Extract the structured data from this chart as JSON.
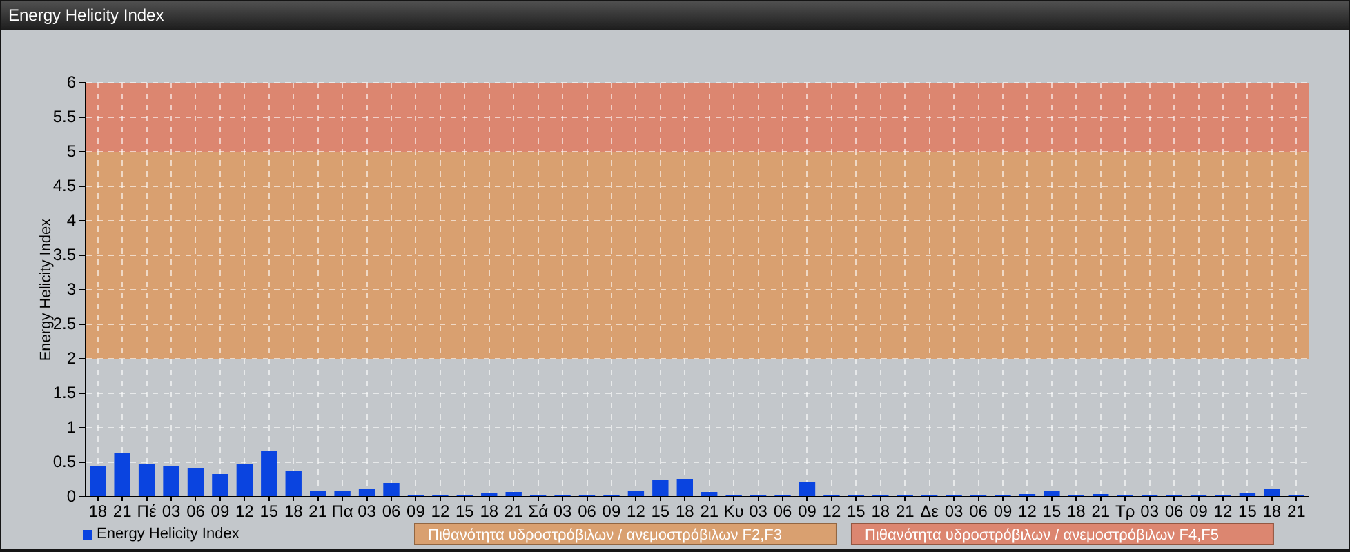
{
  "chart_data": {
    "type": "bar",
    "title": "Energy Helicity Index",
    "ylabel": "Energy Helicity Index",
    "categories": [
      "18",
      "21",
      "Πέ",
      "03",
      "06",
      "09",
      "12",
      "15",
      "18",
      "21",
      "Πα",
      "03",
      "06",
      "09",
      "12",
      "15",
      "18",
      "21",
      "Σά",
      "03",
      "06",
      "09",
      "12",
      "15",
      "18",
      "21",
      "Κυ",
      "03",
      "06",
      "09",
      "12",
      "15",
      "18",
      "21",
      "Δε",
      "03",
      "06",
      "09",
      "12",
      "15",
      "18",
      "21",
      "Τρ",
      "03",
      "06",
      "09",
      "12",
      "15",
      "18",
      "21"
    ],
    "series": [
      {
        "name": "Energy Helicity Index",
        "color": "#0a44e0",
        "values": [
          0.45,
          0.63,
          0.48,
          0.44,
          0.42,
          0.33,
          0.47,
          0.66,
          0.38,
          0.08,
          0.09,
          0.12,
          0.2,
          0.02,
          0.02,
          0.02,
          0.05,
          0.07,
          0.02,
          0.02,
          0.02,
          0.02,
          0.09,
          0.24,
          0.26,
          0.07,
          0.02,
          0.02,
          0.02,
          0.22,
          0.02,
          0.02,
          0.02,
          0.02,
          0.02,
          0.02,
          0.02,
          0.02,
          0.04,
          0.09,
          0.02,
          0.04,
          0.03,
          0.02,
          0.02,
          0.03,
          0.02,
          0.06,
          0.11,
          0.02
        ]
      }
    ],
    "ylim": [
      0,
      6
    ],
    "yticks": [
      0,
      0.5,
      1,
      1.5,
      2,
      2.5,
      3,
      3.5,
      4,
      4.5,
      5,
      5.5,
      6
    ],
    "grid": true,
    "legend": "bottom left",
    "bands": [
      {
        "axis": "y",
        "from": 2,
        "to": 5,
        "label": "Πιθανότητα υδροστρόβιλων / ανεμοστρόβιλων F2,F3",
        "color": "#d9a070"
      },
      {
        "axis": "y",
        "from": 5,
        "to": 6,
        "label": "Πιθανότητα υδροστρόβιλων / ανεμοστρόβιλων F4,F5",
        "color": "#dc8670"
      }
    ]
  }
}
